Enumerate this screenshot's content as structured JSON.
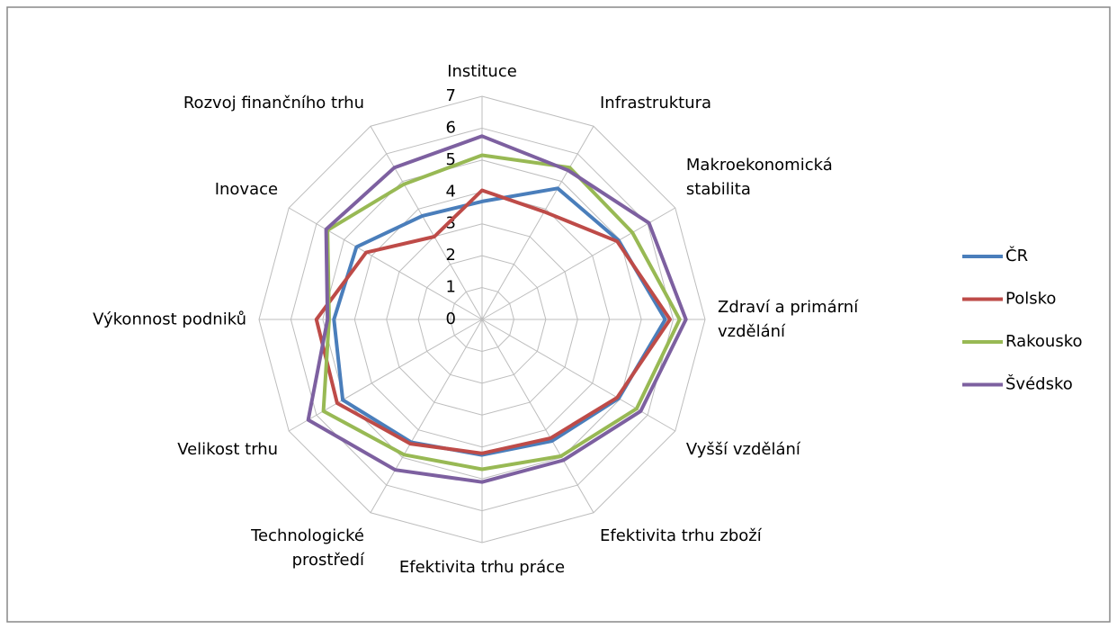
{
  "chart_data": {
    "type": "radar",
    "categories": [
      "Instituce",
      "Infrastruktura",
      "Makroekonomická\nstabilita",
      "Zdraví a primární\nvzdělání",
      "Vyšší vzdělání",
      "Efektivita trhu zboží",
      "Efektivita trhu práce",
      "Technologické\nprostředí",
      "Velikost trhu",
      "Výkonnost podniků",
      "Inovace",
      "Rozvoj finančního trhu"
    ],
    "series": [
      {
        "name": "ČR",
        "color": "#4a7ebb",
        "values": [
          3.7,
          4.75,
          4.95,
          5.75,
          4.95,
          4.4,
          4.25,
          4.45,
          5.05,
          4.65,
          4.55,
          3.75
        ]
      },
      {
        "name": "Polsko",
        "color": "#be4b48",
        "values": [
          4.05,
          3.9,
          4.9,
          5.9,
          4.9,
          4.3,
          4.2,
          4.5,
          5.25,
          5.2,
          4.2,
          3.0
        ]
      },
      {
        "name": "Rakousko",
        "color": "#98b954",
        "values": [
          5.15,
          5.5,
          5.45,
          6.2,
          5.6,
          4.95,
          4.7,
          4.9,
          5.75,
          4.8,
          5.6,
          4.9
        ]
      },
      {
        "name": "Švédsko",
        "color": "#7d60a0",
        "values": [
          5.75,
          5.4,
          6.05,
          6.4,
          5.75,
          5.1,
          5.1,
          5.45,
          6.3,
          4.85,
          5.65,
          5.5
        ]
      }
    ],
    "ylim": [
      0,
      7
    ],
    "yticks": [
      0,
      1,
      2,
      3,
      4,
      5,
      6,
      7
    ],
    "grid": true,
    "legend": "right"
  }
}
